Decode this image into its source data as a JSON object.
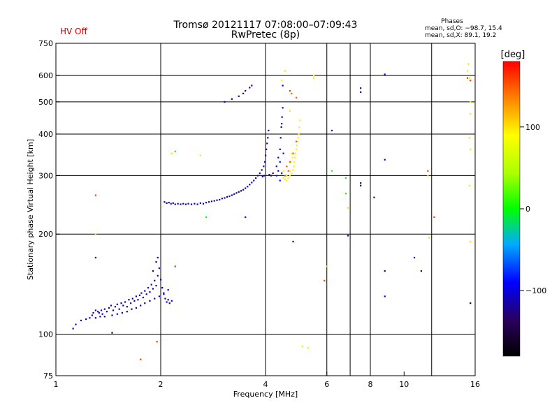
{
  "chart_data": {
    "type": "scatter",
    "title": "Tromsø 20121117 07:08:00–07:09:43",
    "subtitle": "RwPretec (8p)",
    "status_label": "HV Off",
    "xlabel": "Frequency [MHz]",
    "ylabel": "Stationary phase Virtual Height [km]",
    "x_scale": "log",
    "y_scale": "log",
    "xlim": [
      1,
      16
    ],
    "ylim": [
      75,
      750
    ],
    "x_ticks": [
      1,
      2,
      4,
      6,
      8,
      10,
      16
    ],
    "x_tick_labels": [
      "1",
      "2",
      "4",
      "6",
      "8",
      "10",
      "16"
    ],
    "x_gridlines": [
      2,
      4,
      6,
      7,
      8,
      12
    ],
    "y_ticks": [
      75,
      100,
      200,
      300,
      400,
      500,
      600,
      750
    ],
    "y_tick_labels": [
      "75",
      "100",
      "200",
      "300",
      "400",
      "500",
      "600",
      "750"
    ],
    "y_gridlines": [
      100,
      200,
      300,
      400,
      500,
      600
    ],
    "grid": true,
    "phases": {
      "heading": "Phases",
      "line_o": "mean, sd,O: −98.7, 15.4",
      "line_x": "mean, sd,X:  89.1, 19.2"
    },
    "colorbar": {
      "label": "[deg]",
      "range": [
        -180,
        180
      ],
      "tick_values": [
        100,
        0,
        -100
      ],
      "tick_labels": [
        "100",
        "0",
        "−100"
      ]
    },
    "series": [
      {
        "color_value": -110,
        "points": [
          [
            1.12,
            104
          ],
          [
            1.14,
            107
          ],
          [
            1.18,
            110
          ],
          [
            1.22,
            111
          ],
          [
            1.25,
            112
          ],
          [
            1.27,
            114
          ],
          [
            1.28,
            116
          ],
          [
            1.3,
            118
          ],
          [
            1.32,
            117
          ],
          [
            1.33,
            116
          ],
          [
            1.35,
            118
          ],
          [
            1.36,
            115
          ],
          [
            1.38,
            119
          ],
          [
            1.4,
            117
          ],
          [
            1.42,
            120
          ],
          [
            1.44,
            122
          ],
          [
            1.46,
            118
          ],
          [
            1.48,
            121
          ],
          [
            1.5,
            123
          ],
          [
            1.52,
            119
          ],
          [
            1.54,
            124
          ],
          [
            1.56,
            122
          ],
          [
            1.58,
            125
          ],
          [
            1.6,
            121
          ],
          [
            1.62,
            127
          ],
          [
            1.64,
            124
          ],
          [
            1.66,
            128
          ],
          [
            1.68,
            126
          ],
          [
            1.7,
            130
          ],
          [
            1.72,
            127
          ],
          [
            1.74,
            131
          ],
          [
            1.76,
            133
          ],
          [
            1.78,
            129
          ],
          [
            1.8,
            135
          ],
          [
            1.82,
            132
          ],
          [
            1.84,
            138
          ],
          [
            1.86,
            134
          ],
          [
            1.88,
            141
          ],
          [
            1.9,
            137
          ],
          [
            1.92,
            145
          ],
          [
            1.94,
            140
          ],
          [
            1.96,
            150
          ],
          [
            1.98,
            158
          ],
          [
            2.0,
            146
          ],
          [
            2.02,
            138
          ],
          [
            2.04,
            132
          ],
          [
            2.06,
            128
          ],
          [
            2.08,
            125
          ],
          [
            2.1,
            127
          ],
          [
            2.12,
            124
          ],
          [
            2.15,
            126
          ],
          [
            1.94,
            165
          ],
          [
            1.96,
            170
          ],
          [
            1.9,
            155
          ],
          [
            1.3,
            112
          ],
          [
            1.34,
            113
          ],
          [
            1.38,
            113
          ],
          [
            1.45,
            114
          ],
          [
            1.5,
            115
          ],
          [
            1.55,
            116
          ],
          [
            1.6,
            117
          ],
          [
            1.65,
            119
          ],
          [
            1.7,
            120
          ],
          [
            1.75,
            122
          ],
          [
            1.8,
            124
          ],
          [
            1.86,
            126
          ],
          [
            1.92,
            128
          ],
          [
            1.98,
            130
          ],
          [
            2.04,
            133
          ],
          [
            2.1,
            136
          ]
        ]
      },
      {
        "color_value": -115,
        "points": [
          [
            2.05,
            250
          ],
          [
            2.08,
            248
          ],
          [
            2.11,
            249
          ],
          [
            2.14,
            247
          ],
          [
            2.17,
            248
          ],
          [
            2.2,
            246
          ],
          [
            2.24,
            247
          ],
          [
            2.28,
            246
          ],
          [
            2.32,
            247
          ],
          [
            2.36,
            246
          ],
          [
            2.4,
            247
          ],
          [
            2.45,
            246
          ],
          [
            2.5,
            247
          ],
          [
            2.55,
            246
          ],
          [
            2.6,
            248
          ],
          [
            2.65,
            247
          ],
          [
            2.7,
            249
          ],
          [
            2.75,
            250
          ],
          [
            2.8,
            251
          ],
          [
            2.85,
            252
          ],
          [
            2.9,
            253
          ],
          [
            2.95,
            254
          ],
          [
            3.0,
            256
          ],
          [
            3.05,
            257
          ],
          [
            3.1,
            259
          ],
          [
            3.15,
            260
          ],
          [
            3.2,
            262
          ],
          [
            3.25,
            264
          ],
          [
            3.3,
            266
          ],
          [
            3.35,
            268
          ],
          [
            3.4,
            270
          ],
          [
            3.45,
            272
          ],
          [
            3.5,
            275
          ],
          [
            3.55,
            278
          ],
          [
            3.6,
            282
          ],
          [
            3.65,
            286
          ],
          [
            3.7,
            290
          ],
          [
            3.75,
            295
          ],
          [
            3.8,
            300
          ],
          [
            3.85,
            305
          ],
          [
            3.9,
            312
          ],
          [
            3.95,
            320
          ],
          [
            3.98,
            330
          ],
          [
            4.0,
            345
          ],
          [
            4.02,
            360
          ],
          [
            4.04,
            375
          ],
          [
            4.06,
            390
          ],
          [
            4.08,
            410
          ],
          [
            3.96,
            300
          ],
          [
            3.92,
            298
          ],
          [
            4.1,
            302
          ],
          [
            4.15,
            300
          ],
          [
            4.2,
            305
          ],
          [
            4.3,
            320
          ],
          [
            4.35,
            340
          ],
          [
            4.4,
            360
          ],
          [
            4.42,
            390
          ],
          [
            4.44,
            420
          ],
          [
            4.46,
            450
          ],
          [
            4.48,
            480
          ],
          [
            3.05,
            500
          ],
          [
            3.2,
            510
          ],
          [
            3.35,
            520
          ],
          [
            3.45,
            530
          ],
          [
            3.5,
            540
          ],
          [
            3.6,
            552
          ],
          [
            3.65,
            560
          ]
        ]
      },
      {
        "color_value": 95,
        "points": [
          [
            4.5,
            295
          ],
          [
            4.55,
            292
          ],
          [
            4.6,
            290
          ],
          [
            4.65,
            295
          ],
          [
            4.7,
            300
          ],
          [
            4.75,
            305
          ],
          [
            4.8,
            312
          ],
          [
            4.82,
            320
          ],
          [
            4.84,
            330
          ],
          [
            4.86,
            340
          ],
          [
            4.88,
            350
          ],
          [
            4.9,
            360
          ],
          [
            4.92,
            370
          ],
          [
            4.94,
            380
          ],
          [
            4.96,
            390
          ],
          [
            4.98,
            400
          ],
          [
            5.0,
            420
          ],
          [
            5.02,
            440
          ],
          [
            4.7,
            310
          ],
          [
            4.72,
            330
          ],
          [
            4.75,
            350
          ],
          [
            4.78,
            340
          ],
          [
            4.6,
            300
          ],
          [
            4.5,
            310
          ],
          [
            5.5,
            600
          ],
          [
            4.45,
            580
          ]
        ]
      },
      {
        "color_value": 150,
        "points": [
          [
            4.6,
            320
          ],
          [
            4.65,
            310
          ],
          [
            4.7,
            330
          ],
          [
            4.8,
            350
          ],
          [
            4.9,
            380
          ],
          [
            4.55,
            300
          ],
          [
            4.75,
            530
          ],
          [
            4.9,
            515
          ]
        ]
      },
      {
        "color_value": -90,
        "points": [
          [
            4.3,
            300
          ],
          [
            4.35,
            310
          ],
          [
            4.4,
            290
          ],
          [
            4.45,
            305
          ],
          [
            4.4,
            330
          ],
          [
            4.5,
            350
          ],
          [
            4.45,
            430
          ],
          [
            4.48,
            560
          ]
        ]
      },
      {
        "color_value": -100,
        "points": [
          [
            1.3,
            170
          ],
          [
            6.2,
            410
          ],
          [
            7.5,
            550
          ],
          [
            7.5,
            535
          ],
          [
            8.2,
            258
          ],
          [
            8.8,
            335
          ],
          [
            8.8,
            155
          ],
          [
            8.8,
            130
          ],
          [
            10.7,
            170
          ],
          [
            11.2,
            155
          ],
          [
            7.5,
            285
          ],
          [
            4.8,
            190
          ],
          [
            3.5,
            225
          ],
          [
            6.9,
            198
          ],
          [
            8.8,
            605
          ]
        ]
      },
      {
        "color_value": 0,
        "points": [
          [
            6.2,
            310
          ],
          [
            6.8,
            295
          ],
          [
            2.2,
            355
          ],
          [
            6.8,
            265
          ],
          [
            2.7,
            225
          ]
        ]
      },
      {
        "color_value": 100,
        "points": [
          [
            2.15,
            350
          ],
          [
            2.6,
            345
          ],
          [
            4.7,
            470
          ],
          [
            6.9,
            240
          ],
          [
            5.5,
            590
          ],
          [
            5.1,
            92
          ],
          [
            5.3,
            91
          ],
          [
            6.0,
            160
          ],
          [
            11.7,
            300
          ],
          [
            11.8,
            195
          ],
          [
            15.2,
            620
          ],
          [
            15.3,
            650
          ],
          [
            15.4,
            590
          ],
          [
            15.5,
            500
          ],
          [
            15.5,
            460
          ],
          [
            15.4,
            390
          ],
          [
            15.5,
            360
          ],
          [
            15.4,
            280
          ],
          [
            15.5,
            190
          ],
          [
            1.3,
            200
          ],
          [
            4.55,
            620
          ]
        ]
      },
      {
        "color_value": 160,
        "points": [
          [
            1.3,
            262
          ],
          [
            1.75,
            84
          ],
          [
            2.2,
            160
          ],
          [
            5.9,
            145
          ],
          [
            11.7,
            310
          ],
          [
            12.2,
            225
          ],
          [
            15.2,
            590
          ],
          [
            15.5,
            580
          ],
          [
            1.95,
            95
          ],
          [
            4.7,
            540
          ]
        ]
      },
      {
        "color_value": -170,
        "points": [
          [
            1.45,
            101
          ],
          [
            7.5,
            280
          ],
          [
            15.5,
            124
          ]
        ]
      }
    ]
  }
}
